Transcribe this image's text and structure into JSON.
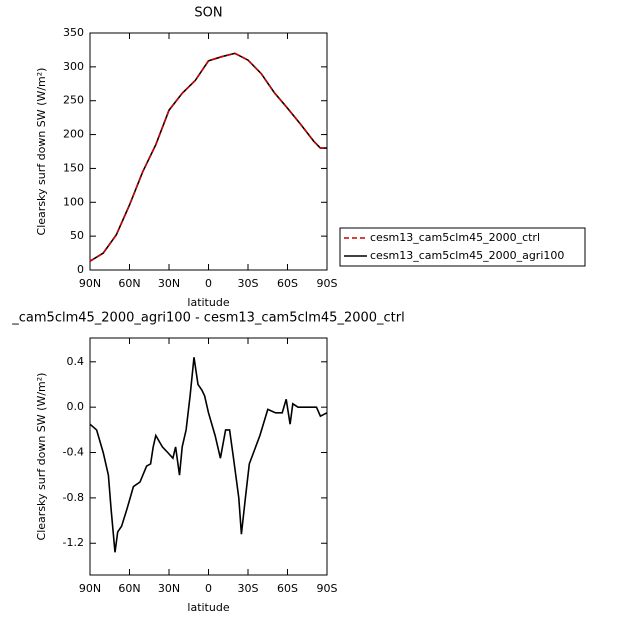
{
  "chart_data": [
    {
      "type": "line",
      "title": "SON",
      "xlabel": "latitude",
      "ylabel": "Clearsky surf down SW (W/m²)",
      "x": [
        90,
        80,
        70,
        60,
        50,
        40,
        30,
        20,
        10,
        0,
        -10,
        -20,
        -30,
        -40,
        -50,
        -60,
        -70,
        -80,
        -85,
        -90
      ],
      "series": [
        {
          "name": "cesm13_cam5clm45_2000_ctrl",
          "color": "#cc0000",
          "line_style": "dashed",
          "values": [
            13,
            25,
            52,
            96,
            145,
            185,
            236,
            261,
            280,
            309,
            315,
            320,
            310,
            290,
            262,
            239,
            215,
            190,
            180,
            180
          ]
        },
        {
          "name": "cesm13_cam5clm45_2000_agri100",
          "color": "#000000",
          "line_style": "solid",
          "values": [
            13,
            25,
            52,
            96,
            145,
            185,
            236,
            261,
            280,
            309,
            315,
            320,
            310,
            290,
            262,
            239,
            215,
            190,
            180,
            180
          ]
        }
      ],
      "xlim": [
        90,
        -90
      ],
      "xticks": [
        {
          "value": 90,
          "label": "90N"
        },
        {
          "value": 60,
          "label": "60N"
        },
        {
          "value": 30,
          "label": "30N"
        },
        0,
        {
          "value": -30,
          "label": "30S"
        },
        {
          "value": -60,
          "label": "60S"
        },
        {
          "value": -90,
          "label": "90S"
        }
      ],
      "ylim": [
        0,
        350
      ],
      "yticks": [
        0,
        50,
        100,
        150,
        200,
        250,
        300,
        350
      ],
      "legend": "right"
    },
    {
      "type": "line",
      "title": "_cam5clm45_2000_agri100 - cesm13_cam5clm45_2000_ctrl",
      "xlabel": "latitude",
      "ylabel": "Clearsky surf down SW (W/m²)",
      "x": [
        90,
        85,
        80,
        76,
        74,
        71,
        69,
        66,
        62,
        57,
        52,
        47,
        44,
        42,
        40,
        35,
        31,
        27,
        25,
        22,
        20,
        17,
        14,
        11,
        8,
        5,
        3,
        0,
        -5,
        -9,
        -13,
        -16,
        -19,
        -23,
        -25,
        -28,
        -31,
        -39,
        -45,
        -51,
        -56,
        -59,
        -62,
        -64,
        -68,
        -72,
        -77,
        -82,
        -85,
        -90
      ],
      "values": [
        -0.15,
        -0.2,
        -0.4,
        -0.6,
        -0.9,
        -1.28,
        -1.1,
        -1.05,
        -0.9,
        -0.7,
        -0.66,
        -0.52,
        -0.5,
        -0.35,
        -0.25,
        -0.35,
        -0.4,
        -0.45,
        -0.35,
        -0.6,
        -0.35,
        -0.2,
        0.1,
        0.44,
        0.2,
        0.15,
        0.1,
        -0.05,
        -0.25,
        -0.45,
        -0.2,
        -0.2,
        -0.45,
        -0.8,
        -1.12,
        -0.8,
        -0.5,
        -0.25,
        -0.02,
        -0.05,
        -0.05,
        0.07,
        -0.15,
        0.03,
        0.0,
        0.0,
        0.0,
        0.0,
        -0.08,
        -0.05
      ],
      "color": "#000000",
      "xlim": [
        90,
        -90
      ],
      "xticks": [
        {
          "value": 90,
          "label": "90N"
        },
        {
          "value": 60,
          "label": "60N"
        },
        {
          "value": 30,
          "label": "30N"
        },
        0,
        {
          "value": -30,
          "label": "30S"
        },
        {
          "value": -60,
          "label": "60S"
        },
        {
          "value": -90,
          "label": "90S"
        }
      ],
      "ylim": [
        -1.48,
        0.61
      ],
      "yticks": [
        -1.2,
        -0.8,
        -0.4,
        {
          "value": 0,
          "label": "0.0"
        },
        0.4
      ]
    }
  ]
}
